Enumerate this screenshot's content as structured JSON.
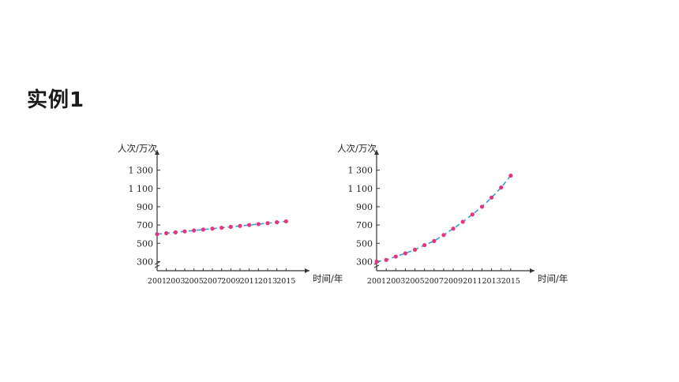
{
  "heading": "实例1",
  "colors": {
    "point": "#e8337f",
    "trend_line": "#2fa4d6",
    "axis": "#333333"
  },
  "chart_data": [
    {
      "type": "scatter",
      "ylabel": "人次/万次",
      "xlabel": "时间/年",
      "x": [
        2001,
        2002,
        2003,
        2004,
        2005,
        2006,
        2007,
        2008,
        2009,
        2010,
        2011,
        2012,
        2013,
        2014,
        2015
      ],
      "values": [
        600,
        610,
        620,
        630,
        640,
        650,
        660,
        670,
        680,
        690,
        700,
        710,
        720,
        730,
        740
      ],
      "xticks": [
        2001,
        2003,
        2005,
        2007,
        2009,
        2011,
        2013,
        2015
      ],
      "yticks": [
        300,
        500,
        700,
        900,
        1100,
        1300
      ],
      "ytick_labels": [
        "300",
        "500",
        "700",
        "900",
        "1 100",
        "1 300"
      ],
      "xlim": [
        2001,
        2016
      ],
      "ylim": [
        200,
        1400
      ],
      "trend_line": "dashed",
      "grid": false
    },
    {
      "type": "scatter",
      "ylabel": "人次/万次",
      "xlabel": "时间/年",
      "x": [
        2001,
        2002,
        2003,
        2004,
        2005,
        2006,
        2007,
        2008,
        2009,
        2010,
        2011,
        2012,
        2013,
        2014,
        2015
      ],
      "values": [
        300,
        318,
        355,
        390,
        430,
        480,
        525,
        590,
        660,
        735,
        815,
        900,
        1000,
        1110,
        1240
      ],
      "xticks": [
        2001,
        2003,
        2005,
        2007,
        2009,
        2011,
        2013,
        2015
      ],
      "yticks": [
        300,
        500,
        700,
        900,
        1100,
        1300
      ],
      "ytick_labels": [
        "300",
        "500",
        "700",
        "900",
        "1 100",
        "1 300"
      ],
      "xlim": [
        2001,
        2016
      ],
      "ylim": [
        200,
        1400
      ],
      "trend_line": "dashed",
      "grid": false
    }
  ]
}
